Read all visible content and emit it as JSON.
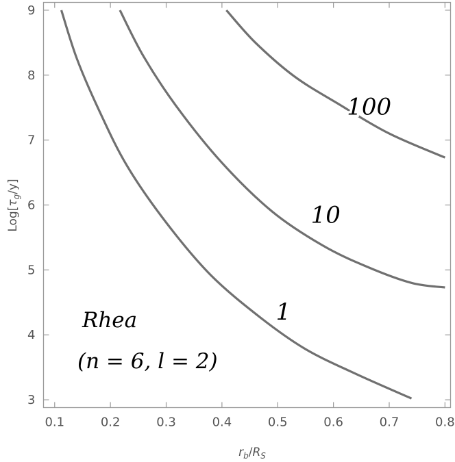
{
  "chart_data": {
    "type": "line",
    "xlabel": "r_b/R_S",
    "xlabel_main": "r",
    "xlabel_sub": "b",
    "xlabel_slash": "/",
    "xlabel_main2": "R",
    "xlabel_sub2": "S",
    "ylabel_pre": "Log[",
    "ylabel_tau": "τ",
    "ylabel_sub": "g",
    "ylabel_post": "/y]",
    "xlim": [
      0.08,
      0.81
    ],
    "ylim": [
      2.88,
      9.12
    ],
    "xticks": [
      0.1,
      0.2,
      0.3,
      0.4,
      0.5,
      0.6,
      0.7,
      0.8
    ],
    "xtick_labels": [
      "0.1",
      "0.2",
      "0.3",
      "0.4",
      "0.5",
      "0.6",
      "0.7",
      "0.8"
    ],
    "yticks": [
      3,
      4,
      5,
      6,
      7,
      8,
      9
    ],
    "ytick_labels": [
      "3",
      "4",
      "5",
      "6",
      "7",
      "8",
      "9"
    ],
    "grid": false,
    "series": [
      {
        "name": "1",
        "points": [
          [
            0.112,
            9.0
          ],
          [
            0.14,
            8.25
          ],
          [
            0.18,
            7.45
          ],
          [
            0.23,
            6.6
          ],
          [
            0.3,
            5.73
          ],
          [
            0.38,
            4.92
          ],
          [
            0.47,
            4.26
          ],
          [
            0.55,
            3.78
          ],
          [
            0.64,
            3.4
          ],
          [
            0.74,
            3.02
          ]
        ]
      },
      {
        "name": "10",
        "points": [
          [
            0.217,
            9.0
          ],
          [
            0.26,
            8.28
          ],
          [
            0.32,
            7.5
          ],
          [
            0.4,
            6.65
          ],
          [
            0.49,
            5.9
          ],
          [
            0.58,
            5.38
          ],
          [
            0.66,
            5.05
          ],
          [
            0.74,
            4.8
          ],
          [
            0.8,
            4.73
          ]
        ]
      },
      {
        "name": "100",
        "points": [
          [
            0.408,
            9.0
          ],
          [
            0.46,
            8.5
          ],
          [
            0.53,
            7.98
          ],
          [
            0.61,
            7.55
          ],
          [
            0.7,
            7.1
          ],
          [
            0.8,
            6.73
          ]
        ]
      }
    ],
    "contour_labels": [
      {
        "text": "1",
        "x": 0.51,
        "y": 4.36
      },
      {
        "text": "10",
        "x": 0.586,
        "y": 5.85
      },
      {
        "text": "100",
        "x": 0.664,
        "y": 7.52
      }
    ],
    "annotations": {
      "name": "Rhea",
      "params": "(n = 6,  l = 2)"
    }
  }
}
